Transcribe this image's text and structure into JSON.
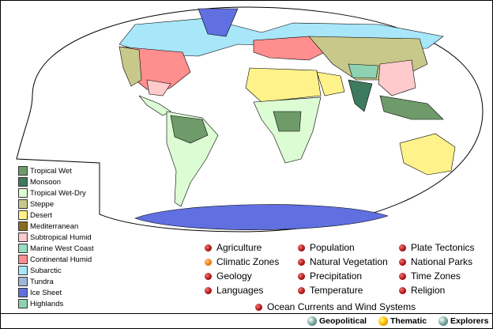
{
  "legend": [
    {
      "label": "Tropical Wet",
      "color": "#6f9a6a"
    },
    {
      "label": "Monsoon",
      "color": "#3d7a5e"
    },
    {
      "label": "Tropical Wet-Dry",
      "color": "#dcfcd4"
    },
    {
      "label": "Steppe",
      "color": "#c8c88a"
    },
    {
      "label": "Desert",
      "color": "#fff28a"
    },
    {
      "label": "Mediterranean",
      "color": "#8c6c1e"
    },
    {
      "label": "Subtropical Humid",
      "color": "#ffcacc"
    },
    {
      "label": "Marine West Coast",
      "color": "#98dcc4"
    },
    {
      "label": "Continental Humid",
      "color": "#ff8e8e"
    },
    {
      "label": "Subarctic",
      "color": "#a8e6fa"
    },
    {
      "label": "Tundra",
      "color": "#a0b8d8"
    },
    {
      "label": "Ice Sheet",
      "color": "#6070e0"
    },
    {
      "label": "Highlands",
      "color": "#8ed2b2"
    }
  ],
  "topics": [
    {
      "label": "Agriculture",
      "active": false
    },
    {
      "label": "Climatic Zones",
      "active": true
    },
    {
      "label": "Geology",
      "active": false
    },
    {
      "label": "Languages",
      "active": false
    },
    {
      "label": "Population",
      "active": false
    },
    {
      "label": "Natural Vegetation",
      "active": false
    },
    {
      "label": "Precipitation",
      "active": false
    },
    {
      "label": "Temperature",
      "active": false
    },
    {
      "label": "Plate Tectonics",
      "active": false
    },
    {
      "label": "National Parks",
      "active": false
    },
    {
      "label": "Time Zones",
      "active": false
    },
    {
      "label": "Religion",
      "active": false
    },
    {
      "label": "Ocean Currents and Wind Systems",
      "active": false
    }
  ],
  "footer": {
    "geopolitical": "Geopolitical",
    "thematic": "Thematic",
    "explorers": "Explorers"
  }
}
